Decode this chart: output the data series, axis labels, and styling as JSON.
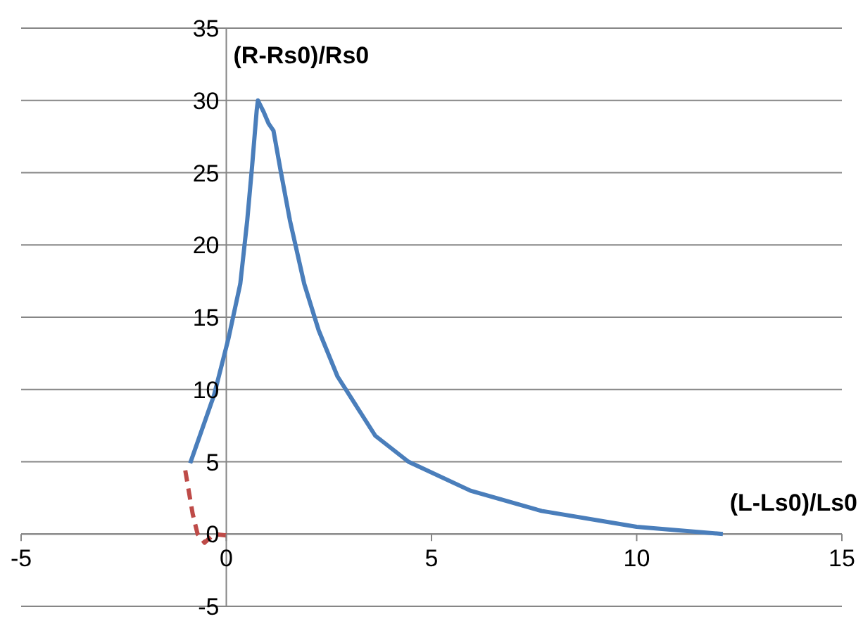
{
  "chart_data": {
    "type": "line",
    "xlabel": "(L-Ls0)/Ls0",
    "ylabel": "(R-Rs0)/Rs0",
    "xlim": [
      -5,
      15
    ],
    "xticks": [
      -5,
      0,
      5,
      10,
      15
    ],
    "ylim": [
      -5,
      35
    ],
    "yticks": [
      -5,
      0,
      5,
      10,
      15,
      20,
      25,
      30,
      35
    ],
    "grid": "y",
    "marker": "none",
    "series": [
      {
        "color": "#4a7ebb",
        "line_style": "solid",
        "x": [
          -0.88,
          -0.3,
          0.05,
          0.34,
          0.51,
          0.63,
          0.74,
          0.77,
          0.91,
          1.03,
          1.15,
          1.32,
          1.55,
          1.9,
          2.25,
          2.71,
          3.63,
          4.44,
          5.95,
          7.68,
          10.0,
          12.1
        ],
        "values": [
          4.9,
          9.6,
          13.5,
          17.3,
          21.7,
          25.5,
          29.3,
          30.0,
          29.2,
          28.4,
          27.9,
          25.2,
          21.7,
          17.3,
          14.1,
          10.9,
          6.8,
          5.0,
          3.0,
          1.6,
          0.5,
          0.0
        ]
      },
      {
        "color": "#be4b48",
        "line_style": "dashed",
        "x": [
          -1.0,
          -0.82,
          -0.7,
          -0.53,
          -0.3,
          0.0
        ],
        "values": [
          4.4,
          1.4,
          0.0,
          -0.6,
          0.0,
          -0.1
        ]
      }
    ]
  }
}
